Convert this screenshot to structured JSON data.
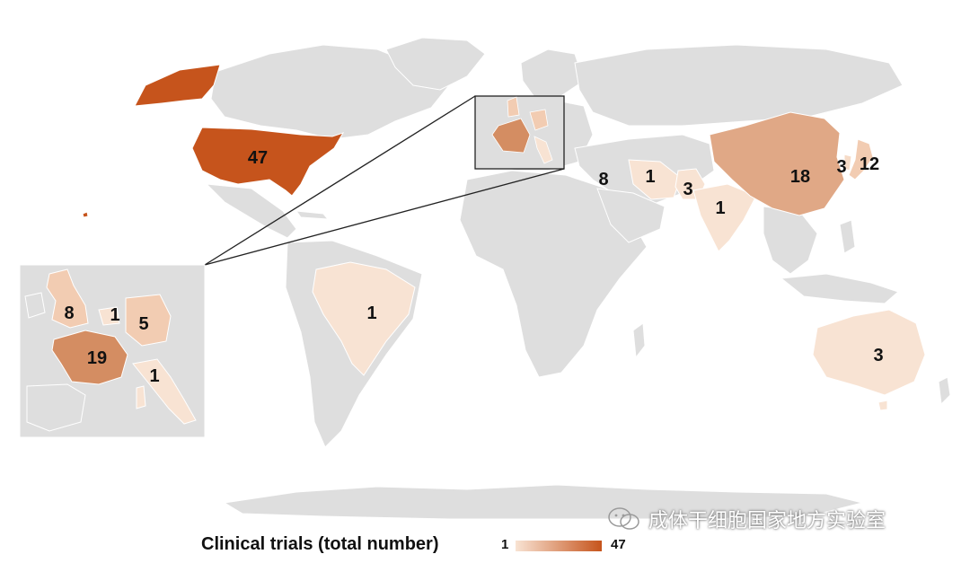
{
  "colors": {
    "land": "#dedede",
    "border": "#ffffff",
    "scale_low": "#f8e3d3",
    "scale_high": "#c6541c"
  },
  "counts": {
    "usa": "47",
    "china": "18",
    "japan": "12",
    "korea": "3",
    "israel": "8",
    "iran": "1",
    "pakistan": "3",
    "india": "1",
    "brazil": "1",
    "australia": "3",
    "uk": "8",
    "belgium": "1",
    "germany": "5",
    "france": "19",
    "italy": "1"
  },
  "legend": {
    "title": "Clinical trials (total number)",
    "min": "1",
    "max": "47"
  },
  "watermark": {
    "text": "成体干细胞国家地方实验室",
    "icon": "wechat-icon"
  }
}
